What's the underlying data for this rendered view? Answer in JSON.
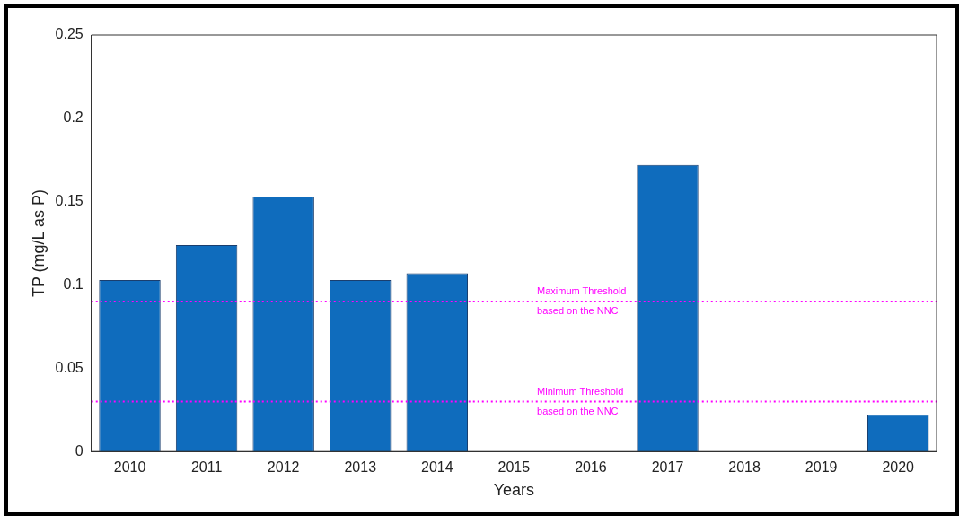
{
  "chart_data": {
    "type": "bar",
    "xlabel": "Years",
    "ylabel": "TP (mg/L as P)",
    "categories": [
      "2010",
      "2011",
      "2012",
      "2013",
      "2014",
      "2015",
      "2016",
      "2017",
      "2018",
      "2019",
      "2020"
    ],
    "values": [
      0.103,
      0.124,
      0.153,
      0.103,
      0.107,
      null,
      null,
      0.172,
      null,
      null,
      0.022
    ],
    "color": "#0f6cbd",
    "ylim": [
      0,
      0.25
    ],
    "yticks": [
      0,
      0.05,
      0.1,
      0.15,
      0.2,
      0.25
    ],
    "grid": false,
    "legend": false,
    "ref_lines": [
      {
        "axis": "y",
        "value": 0.09,
        "label": "Maximum Threshold based on the NNC",
        "color": "#ff00ff",
        "line_style": "dotted"
      },
      {
        "axis": "y",
        "value": 0.03,
        "label": "Minimum Threshold based on the NNC",
        "color": "#ff00ff",
        "line_style": "dotted"
      }
    ]
  }
}
